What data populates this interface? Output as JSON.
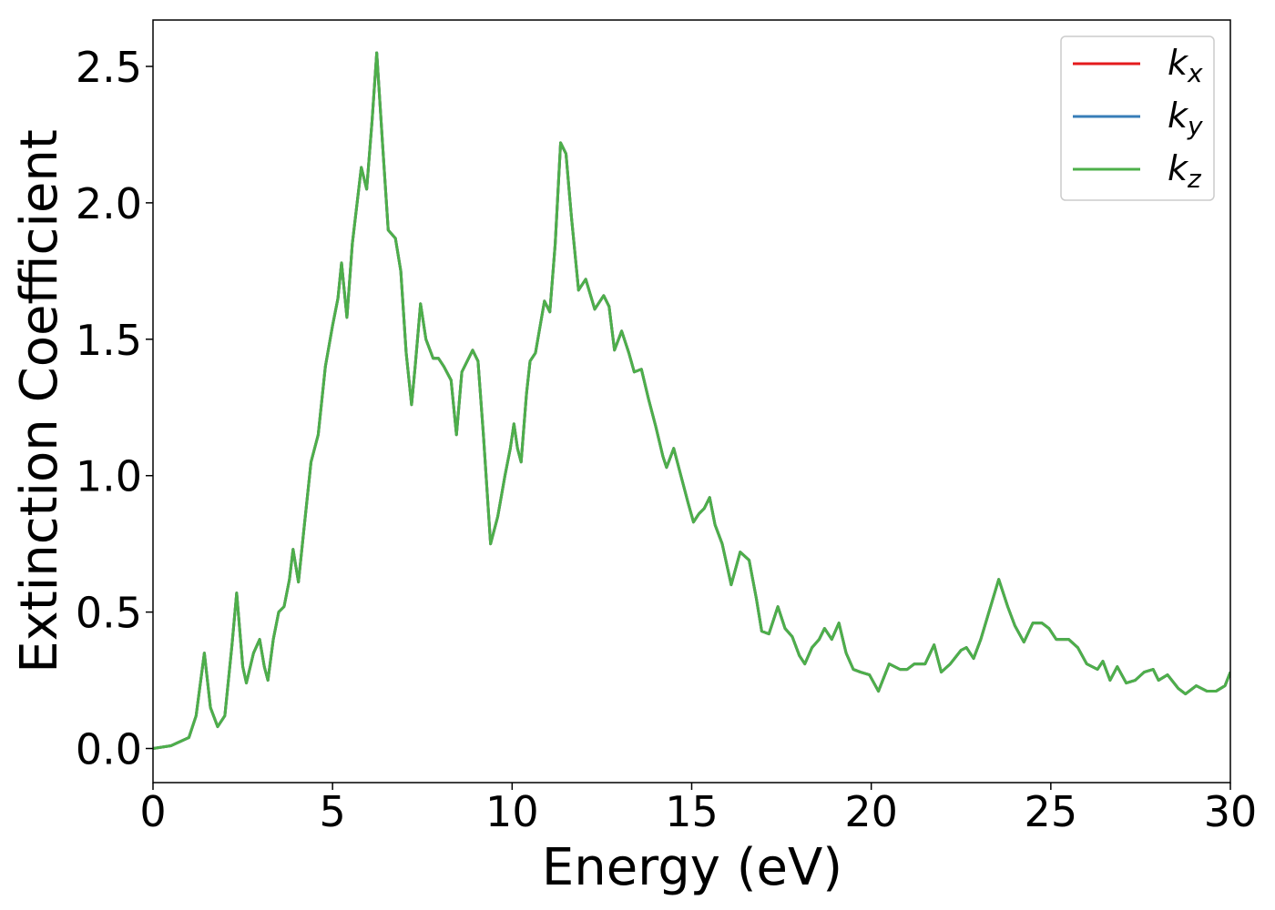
{
  "chart_data": {
    "type": "line",
    "xlabel": "Energy (eV)",
    "ylabel": "Extinction Coefficient",
    "x": [
      0,
      0.5,
      1.0,
      1.2,
      1.43,
      1.6,
      1.8,
      2.0,
      2.2,
      2.33,
      2.5,
      2.6,
      2.8,
      2.97,
      3.1,
      3.2,
      3.35,
      3.5,
      3.65,
      3.8,
      3.9,
      4.05,
      4.2,
      4.4,
      4.6,
      4.8,
      5.0,
      5.15,
      5.25,
      5.4,
      5.55,
      5.8,
      5.95,
      6.1,
      6.23,
      6.4,
      6.55,
      6.75,
      6.9,
      7.05,
      7.2,
      7.3,
      7.45,
      7.6,
      7.8,
      7.95,
      8.1,
      8.3,
      8.45,
      8.6,
      8.75,
      8.9,
      9.05,
      9.2,
      9.4,
      9.6,
      9.8,
      9.95,
      10.05,
      10.15,
      10.25,
      10.4,
      10.5,
      10.65,
      10.9,
      11.05,
      11.2,
      11.35,
      11.5,
      11.65,
      11.85,
      12.05,
      12.3,
      12.55,
      12.7,
      12.85,
      13.05,
      13.25,
      13.4,
      13.6,
      13.8,
      14.0,
      14.2,
      14.3,
      14.5,
      14.7,
      14.9,
      15.05,
      15.2,
      15.35,
      15.5,
      15.65,
      15.85,
      16.1,
      16.35,
      16.6,
      16.8,
      16.95,
      17.15,
      17.4,
      17.6,
      17.8,
      18.0,
      18.15,
      18.35,
      18.55,
      18.7,
      18.9,
      19.1,
      19.3,
      19.5,
      19.7,
      19.95,
      20.2,
      20.5,
      20.8,
      21.0,
      21.2,
      21.5,
      21.75,
      21.95,
      22.2,
      22.5,
      22.65,
      22.85,
      23.05,
      23.3,
      23.55,
      23.8,
      24.0,
      24.25,
      24.5,
      24.75,
      24.95,
      25.15,
      25.5,
      25.75,
      26.0,
      26.3,
      26.45,
      26.65,
      26.85,
      27.1,
      27.35,
      27.6,
      27.85,
      28.0,
      28.25,
      28.55,
      28.75,
      29.05,
      29.35,
      29.6,
      29.85,
      30
    ],
    "series": [
      {
        "name": "kx",
        "color": "#e41a1c",
        "values": [
          0.0,
          0.01,
          0.04,
          0.12,
          0.35,
          0.15,
          0.08,
          0.12,
          0.38,
          0.57,
          0.3,
          0.24,
          0.35,
          0.4,
          0.3,
          0.25,
          0.4,
          0.5,
          0.52,
          0.62,
          0.73,
          0.61,
          0.8,
          1.05,
          1.15,
          1.4,
          1.55,
          1.65,
          1.78,
          1.58,
          1.85,
          2.13,
          2.05,
          2.3,
          2.55,
          2.2,
          1.9,
          1.87,
          1.75,
          1.45,
          1.26,
          1.4,
          1.63,
          1.5,
          1.43,
          1.43,
          1.4,
          1.35,
          1.15,
          1.38,
          1.42,
          1.46,
          1.42,
          1.15,
          0.75,
          0.85,
          1.0,
          1.1,
          1.19,
          1.1,
          1.05,
          1.3,
          1.42,
          1.45,
          1.64,
          1.6,
          1.85,
          2.22,
          2.18,
          1.95,
          1.68,
          1.72,
          1.61,
          1.66,
          1.62,
          1.46,
          1.53,
          1.45,
          1.38,
          1.39,
          1.28,
          1.18,
          1.07,
          1.03,
          1.1,
          1.0,
          0.9,
          0.83,
          0.86,
          0.88,
          0.92,
          0.82,
          0.75,
          0.6,
          0.72,
          0.69,
          0.55,
          0.43,
          0.42,
          0.52,
          0.44,
          0.41,
          0.34,
          0.31,
          0.37,
          0.4,
          0.44,
          0.4,
          0.46,
          0.35,
          0.29,
          0.28,
          0.27,
          0.21,
          0.31,
          0.29,
          0.29,
          0.31,
          0.31,
          0.38,
          0.28,
          0.31,
          0.36,
          0.37,
          0.33,
          0.4,
          0.51,
          0.62,
          0.52,
          0.45,
          0.39,
          0.46,
          0.46,
          0.44,
          0.4,
          0.4,
          0.37,
          0.31,
          0.29,
          0.32,
          0.25,
          0.3,
          0.24,
          0.25,
          0.28,
          0.29,
          0.25,
          0.27,
          0.22,
          0.2,
          0.23,
          0.21,
          0.21,
          0.23,
          0.28
        ]
      },
      {
        "name": "ky",
        "color": "#377eb8",
        "values": [
          0.0,
          0.01,
          0.04,
          0.12,
          0.35,
          0.15,
          0.08,
          0.12,
          0.38,
          0.57,
          0.3,
          0.24,
          0.35,
          0.4,
          0.3,
          0.25,
          0.4,
          0.5,
          0.52,
          0.62,
          0.73,
          0.61,
          0.8,
          1.05,
          1.15,
          1.4,
          1.55,
          1.65,
          1.78,
          1.58,
          1.85,
          2.13,
          2.05,
          2.3,
          2.55,
          2.2,
          1.9,
          1.87,
          1.75,
          1.45,
          1.26,
          1.4,
          1.63,
          1.5,
          1.43,
          1.43,
          1.4,
          1.35,
          1.15,
          1.38,
          1.42,
          1.46,
          1.42,
          1.15,
          0.75,
          0.85,
          1.0,
          1.1,
          1.19,
          1.1,
          1.05,
          1.3,
          1.42,
          1.45,
          1.64,
          1.6,
          1.85,
          2.22,
          2.18,
          1.95,
          1.68,
          1.72,
          1.61,
          1.66,
          1.62,
          1.46,
          1.53,
          1.45,
          1.38,
          1.39,
          1.28,
          1.18,
          1.07,
          1.03,
          1.1,
          1.0,
          0.9,
          0.83,
          0.86,
          0.88,
          0.92,
          0.82,
          0.75,
          0.6,
          0.72,
          0.69,
          0.55,
          0.43,
          0.42,
          0.52,
          0.44,
          0.41,
          0.34,
          0.31,
          0.37,
          0.4,
          0.44,
          0.4,
          0.46,
          0.35,
          0.29,
          0.28,
          0.27,
          0.21,
          0.31,
          0.29,
          0.29,
          0.31,
          0.31,
          0.38,
          0.28,
          0.31,
          0.36,
          0.37,
          0.33,
          0.4,
          0.51,
          0.62,
          0.52,
          0.45,
          0.39,
          0.46,
          0.46,
          0.44,
          0.4,
          0.4,
          0.37,
          0.31,
          0.29,
          0.32,
          0.25,
          0.3,
          0.24,
          0.25,
          0.28,
          0.29,
          0.25,
          0.27,
          0.22,
          0.2,
          0.23,
          0.21,
          0.21,
          0.23,
          0.28
        ]
      },
      {
        "name": "kz",
        "color": "#4daf4a",
        "values": [
          0.0,
          0.01,
          0.04,
          0.12,
          0.35,
          0.15,
          0.08,
          0.12,
          0.38,
          0.57,
          0.3,
          0.24,
          0.35,
          0.4,
          0.3,
          0.25,
          0.4,
          0.5,
          0.52,
          0.62,
          0.73,
          0.61,
          0.8,
          1.05,
          1.15,
          1.4,
          1.55,
          1.65,
          1.78,
          1.58,
          1.85,
          2.13,
          2.05,
          2.3,
          2.55,
          2.2,
          1.9,
          1.87,
          1.75,
          1.45,
          1.26,
          1.4,
          1.63,
          1.5,
          1.43,
          1.43,
          1.4,
          1.35,
          1.15,
          1.38,
          1.42,
          1.46,
          1.42,
          1.15,
          0.75,
          0.85,
          1.0,
          1.1,
          1.19,
          1.1,
          1.05,
          1.3,
          1.42,
          1.45,
          1.64,
          1.6,
          1.85,
          2.22,
          2.18,
          1.95,
          1.68,
          1.72,
          1.61,
          1.66,
          1.62,
          1.46,
          1.53,
          1.45,
          1.38,
          1.39,
          1.28,
          1.18,
          1.07,
          1.03,
          1.1,
          1.0,
          0.9,
          0.83,
          0.86,
          0.88,
          0.92,
          0.82,
          0.75,
          0.6,
          0.72,
          0.69,
          0.55,
          0.43,
          0.42,
          0.52,
          0.44,
          0.41,
          0.34,
          0.31,
          0.37,
          0.4,
          0.44,
          0.4,
          0.46,
          0.35,
          0.29,
          0.28,
          0.27,
          0.21,
          0.31,
          0.29,
          0.29,
          0.31,
          0.31,
          0.38,
          0.28,
          0.31,
          0.36,
          0.37,
          0.33,
          0.4,
          0.51,
          0.62,
          0.52,
          0.45,
          0.39,
          0.46,
          0.46,
          0.44,
          0.4,
          0.4,
          0.37,
          0.31,
          0.29,
          0.32,
          0.25,
          0.3,
          0.24,
          0.25,
          0.28,
          0.29,
          0.25,
          0.27,
          0.22,
          0.2,
          0.23,
          0.21,
          0.21,
          0.23,
          0.28
        ]
      }
    ],
    "xlim": [
      0,
      30
    ],
    "xticks": [
      0,
      5,
      10,
      15,
      20,
      25,
      30
    ],
    "ylim": [
      -0.125,
      2.67
    ],
    "yticks": [
      {
        "value": 0,
        "label": "0.0"
      },
      0.5,
      {
        "value": 1,
        "label": "1.0"
      },
      1.5,
      {
        "value": 2,
        "label": "2.0"
      },
      2.5
    ],
    "grid": false,
    "legend": "upper right"
  }
}
